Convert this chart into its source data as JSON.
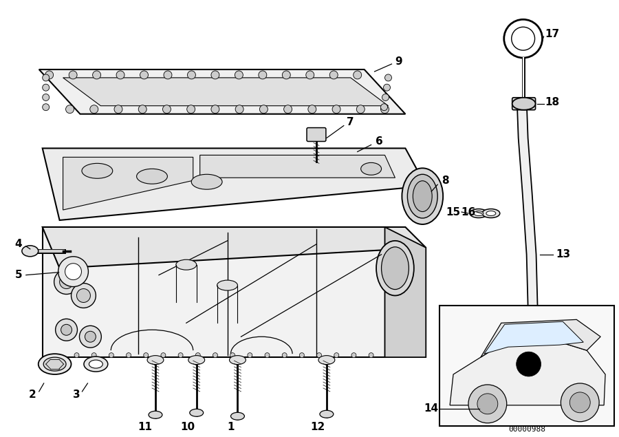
{
  "background_color": "#ffffff",
  "line_color": "#000000",
  "fig_width": 9.0,
  "fig_height": 6.35,
  "diagram_id": "00000988"
}
